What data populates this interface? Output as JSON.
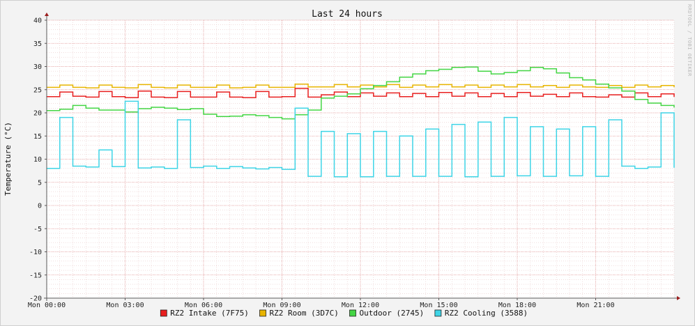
{
  "chart_data": {
    "type": "line",
    "title": "Last 24 hours",
    "ylabel": "Temperature (°C)",
    "xlabel": "",
    "watermark": "RRDTOOL / TOBI OETIKER",
    "ylim": [
      -20,
      40
    ],
    "yticks": [
      40,
      35,
      30,
      25,
      20,
      15,
      10,
      5,
      0,
      -5,
      -10,
      -15,
      -20
    ],
    "xlim_hours": [
      0,
      24
    ],
    "categories": [
      "Mon 00:00",
      "Mon 03:00",
      "Mon 06:00",
      "Mon 09:00",
      "Mon 12:00",
      "Mon 15:00",
      "Mon 18:00",
      "Mon 21:00"
    ],
    "category_hours": [
      0,
      3,
      6,
      9,
      12,
      15,
      18,
      21
    ],
    "grid": true,
    "legend_position": "bottom",
    "colors": {
      "background": "#f3f3f3",
      "plot": "#ffffff",
      "major_grid": "#e6a0a0",
      "minor_grid": "#e8c8c8",
      "axis": "#5a5a5a"
    },
    "series": [
      {
        "name": "RZ2 Intake (7F75)",
        "color": "#e81e1e",
        "x": [
          0,
          0.5,
          1,
          1.5,
          2,
          2.5,
          3,
          3.5,
          4,
          4.5,
          5,
          5.5,
          6,
          6.5,
          7,
          7.5,
          8,
          8.5,
          9,
          9.5,
          10,
          10.5,
          11,
          11.5,
          12,
          12.5,
          13,
          13.5,
          14,
          14.5,
          15,
          15.5,
          16,
          16.5,
          17,
          17.5,
          18,
          18.5,
          19,
          19.5,
          20,
          20.5,
          21,
          21.5,
          22,
          22.5,
          23,
          23.5,
          24
        ],
        "values": [
          23.5,
          24.5,
          23.6,
          23.4,
          24.6,
          23.5,
          23.3,
          24.7,
          23.4,
          23.3,
          24.6,
          23.4,
          23.4,
          24.5,
          23.4,
          23.3,
          24.6,
          23.4,
          23.5,
          25.3,
          23.4,
          23.9,
          24.5,
          23.5,
          24.3,
          23.6,
          24.3,
          23.5,
          24.2,
          23.5,
          24.4,
          23.6,
          24.3,
          23.5,
          24.2,
          23.5,
          24.4,
          23.6,
          24.0,
          23.5,
          24.3,
          23.5,
          23.4,
          23.9,
          23.4,
          24.3,
          23.5,
          24.1,
          23.5
        ]
      },
      {
        "name": "RZ2 Room (3D7C)",
        "color": "#e8b400",
        "x": [
          0,
          0.5,
          1,
          1.5,
          2,
          2.5,
          3,
          3.5,
          4,
          4.5,
          5,
          5.5,
          6,
          6.5,
          7,
          7.5,
          8,
          8.5,
          9,
          9.5,
          10,
          10.5,
          11,
          11.5,
          12,
          12.5,
          13,
          13.5,
          14,
          14.5,
          15,
          15.5,
          16,
          16.5,
          17,
          17.5,
          18,
          18.5,
          19,
          19.5,
          20,
          20.5,
          21,
          21.5,
          22,
          22.5,
          23,
          23.5,
          24
        ],
        "values": [
          25.5,
          26.0,
          25.5,
          25.4,
          26.0,
          25.5,
          25.4,
          26.1,
          25.5,
          25.4,
          26.0,
          25.5,
          25.5,
          26.0,
          25.4,
          25.5,
          26.0,
          25.5,
          25.5,
          26.2,
          25.6,
          25.6,
          26.1,
          25.6,
          26.0,
          25.6,
          26.1,
          25.5,
          26.0,
          25.6,
          26.1,
          25.6,
          26.0,
          25.5,
          26.0,
          25.6,
          26.1,
          25.6,
          25.9,
          25.5,
          26.0,
          25.6,
          25.5,
          25.9,
          25.5,
          26.0,
          25.6,
          25.9,
          25.6
        ]
      },
      {
        "name": "Outdoor (2745)",
        "color": "#44d544",
        "x": [
          0,
          0.5,
          1,
          1.5,
          2,
          2.5,
          3,
          3.5,
          4,
          4.5,
          5,
          5.5,
          6,
          6.5,
          7,
          7.5,
          8,
          8.5,
          9,
          9.5,
          10,
          10.5,
          11,
          11.5,
          12,
          12.5,
          13,
          13.5,
          14,
          14.5,
          15,
          15.5,
          16,
          16.5,
          17,
          17.5,
          18,
          18.5,
          19,
          19.5,
          20,
          20.5,
          21,
          21.5,
          22,
          22.5,
          23,
          23.5,
          24
        ],
        "values": [
          20.5,
          20.8,
          21.6,
          21.0,
          20.6,
          20.6,
          20.2,
          20.9,
          21.2,
          21.0,
          20.7,
          20.9,
          19.7,
          19.2,
          19.3,
          19.6,
          19.4,
          19.0,
          18.7,
          19.6,
          20.6,
          23.2,
          23.6,
          24.1,
          25.2,
          25.9,
          26.7,
          27.7,
          28.4,
          29.1,
          29.4,
          29.8,
          29.9,
          29.0,
          28.4,
          28.7,
          29.1,
          29.8,
          29.5,
          28.6,
          27.6,
          27.1,
          26.2,
          25.4,
          24.7,
          22.9,
          22.1,
          21.6,
          21.2
        ]
      },
      {
        "name": "RZ2 Cooling (3588)",
        "color": "#3ed4e6",
        "x": [
          0,
          0.5,
          1,
          1.5,
          2,
          2.5,
          3,
          3.5,
          4,
          4.5,
          5,
          5.5,
          6,
          6.5,
          7,
          7.5,
          8,
          8.5,
          9,
          9.5,
          10,
          10.5,
          11,
          11.5,
          12,
          12.5,
          13,
          13.5,
          14,
          14.5,
          15,
          15.5,
          16,
          16.5,
          17,
          17.5,
          18,
          18.5,
          19,
          19.5,
          20,
          20.5,
          21,
          21.5,
          22,
          22.5,
          23,
          23.5,
          24
        ],
        "values": [
          8.0,
          19.0,
          8.5,
          8.3,
          12.0,
          8.4,
          22.5,
          8.1,
          8.3,
          8.0,
          18.5,
          8.2,
          8.5,
          8.0,
          8.4,
          8.1,
          7.9,
          8.2,
          7.8,
          21.0,
          6.3,
          16.0,
          6.2,
          15.5,
          6.2,
          16.0,
          6.3,
          15.0,
          6.3,
          16.5,
          6.3,
          17.5,
          6.2,
          18.0,
          6.3,
          19.0,
          6.4,
          17.0,
          6.3,
          16.5,
          6.4,
          17.0,
          6.3,
          18.5,
          8.5,
          8.0,
          8.3,
          20.0,
          8.2
        ]
      }
    ]
  }
}
